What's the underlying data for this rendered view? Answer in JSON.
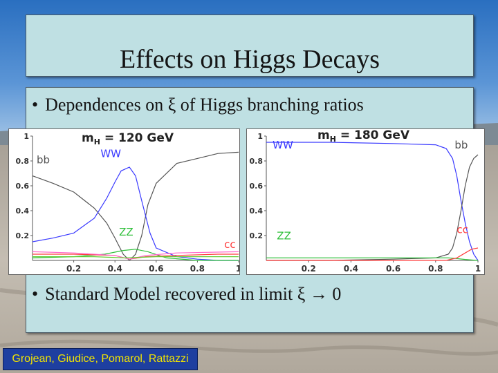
{
  "slide": {
    "title": "Effects on Higgs Decays",
    "bullets": [
      "Dependences on ξ of Higgs branching ratios",
      "Standard Model recovered in limit ξ → 0"
    ],
    "bullet_marker": "•",
    "credit": "Grojean, Giudice, Pomarol, Rattazzi"
  },
  "colors": {
    "panel_bg": "#bfe0e3",
    "credit_bg": "#1e3fa0",
    "credit_text": "#f2e400",
    "ww": "#3a3aff",
    "zz": "#2fbf3a",
    "cc": "#ff3b3b",
    "bb": "#555555"
  },
  "chart_data": [
    {
      "type": "line",
      "title": "mH = 120 GeV",
      "title_main": "m",
      "title_sub": "H",
      "title_rest": " = 120 GeV",
      "x_ticks": [
        "0.2",
        "0.4",
        "0.6",
        "0.8",
        "1"
      ],
      "y_ticks": [
        "0.2",
        "0.4",
        "0.6",
        "0.8",
        "1"
      ],
      "xlim": [
        0,
        1
      ],
      "ylim": [
        0,
        1
      ],
      "series": [
        {
          "name": "bb",
          "color": "#555555",
          "x": [
            0,
            0.1,
            0.2,
            0.3,
            0.36,
            0.4,
            0.44,
            0.47,
            0.5,
            0.53,
            0.56,
            0.6,
            0.7,
            0.8,
            0.9,
            1.0
          ],
          "y": [
            0.68,
            0.62,
            0.55,
            0.42,
            0.3,
            0.18,
            0.05,
            0.0,
            0.05,
            0.2,
            0.45,
            0.62,
            0.78,
            0.82,
            0.86,
            0.87
          ]
        },
        {
          "name": "WW",
          "color": "#3a3aff",
          "x": [
            0,
            0.1,
            0.2,
            0.3,
            0.36,
            0.4,
            0.43,
            0.47,
            0.5,
            0.53,
            0.57,
            0.6,
            0.7,
            0.8,
            0.9,
            1.0
          ],
          "y": [
            0.15,
            0.18,
            0.22,
            0.34,
            0.5,
            0.63,
            0.72,
            0.75,
            0.68,
            0.48,
            0.22,
            0.1,
            0.03,
            0.01,
            0.0,
            0.0
          ]
        },
        {
          "name": "ZZ",
          "color": "#2fbf3a",
          "x": [
            0,
            0.2,
            0.35,
            0.44,
            0.5,
            0.56,
            0.65,
            0.8,
            1.0
          ],
          "y": [
            0.02,
            0.03,
            0.05,
            0.08,
            0.09,
            0.07,
            0.02,
            0.0,
            0.0
          ]
        },
        {
          "name": "cc",
          "color": "#ff3b3b",
          "x": [
            0,
            0.2,
            0.4,
            0.47,
            0.55,
            0.7,
            0.9,
            1.0
          ],
          "y": [
            0.05,
            0.05,
            0.04,
            0.01,
            0.03,
            0.04,
            0.05,
            0.05
          ]
        },
        {
          "name": "",
          "color": "#ff66cc",
          "x": [
            0,
            0.2,
            0.4,
            0.47,
            0.55,
            0.7,
            1.0
          ],
          "y": [
            0.07,
            0.06,
            0.04,
            0.01,
            0.04,
            0.06,
            0.07
          ]
        },
        {
          "name": "",
          "color": "#66cc33",
          "x": [
            0,
            0.3,
            0.45,
            0.6,
            1.0
          ],
          "y": [
            0.03,
            0.03,
            0.02,
            0.03,
            0.03
          ]
        }
      ],
      "labels": [
        {
          "text": "bb",
          "color": "#555555",
          "x": 0.02,
          "y": 0.78
        },
        {
          "text": "WW",
          "color": "#3a3aff",
          "x": 0.33,
          "y": 0.83
        },
        {
          "text": "ZZ",
          "color": "#2fbf3a",
          "x": 0.42,
          "y": 0.2
        },
        {
          "text": "cc",
          "color": "#ff3b3b",
          "x": 0.93,
          "y": 0.1
        }
      ]
    },
    {
      "type": "line",
      "title": "mH = 180 GeV",
      "title_main": "m",
      "title_sub": "H",
      "title_rest": " = 180 GeV",
      "x_ticks": [
        "0.2",
        "0.4",
        "0.6",
        "0.8",
        "1"
      ],
      "y_ticks": [
        "0.2",
        "0.4",
        "0.6",
        "0.8",
        "1"
      ],
      "xlim": [
        0,
        1
      ],
      "ylim": [
        0,
        1
      ],
      "series": [
        {
          "name": "WW",
          "color": "#3a3aff",
          "x": [
            0,
            0.3,
            0.6,
            0.8,
            0.85,
            0.88,
            0.9,
            0.92,
            0.94,
            0.96,
            0.98,
            1.0
          ],
          "y": [
            0.95,
            0.95,
            0.94,
            0.93,
            0.9,
            0.82,
            0.68,
            0.48,
            0.3,
            0.15,
            0.05,
            0.0
          ]
        },
        {
          "name": "bb",
          "color": "#555555",
          "x": [
            0,
            0.3,
            0.6,
            0.8,
            0.86,
            0.88,
            0.9,
            0.92,
            0.94,
            0.96,
            0.98,
            1.0
          ],
          "y": [
            0.0,
            0.0,
            0.01,
            0.02,
            0.05,
            0.1,
            0.22,
            0.4,
            0.6,
            0.75,
            0.82,
            0.85
          ]
        },
        {
          "name": "ZZ",
          "color": "#2fbf3a",
          "x": [
            0,
            0.3,
            0.6,
            0.8,
            0.86,
            0.9,
            0.94,
            0.98,
            1.0
          ],
          "y": [
            0.02,
            0.02,
            0.02,
            0.02,
            0.02,
            0.015,
            0.008,
            0.002,
            0.0
          ]
        },
        {
          "name": "cc",
          "color": "#ff3b3b",
          "x": [
            0,
            0.6,
            0.85,
            0.9,
            0.94,
            0.97,
            1.0
          ],
          "y": [
            0.0,
            0.0,
            0.0,
            0.02,
            0.06,
            0.09,
            0.1
          ]
        }
      ],
      "labels": [
        {
          "text": "WW",
          "color": "#3a3aff",
          "x": 0.03,
          "y": 0.9
        },
        {
          "text": "bb",
          "color": "#555555",
          "x": 0.89,
          "y": 0.9
        },
        {
          "text": "ZZ",
          "color": "#2fbf3a",
          "x": 0.05,
          "y": 0.17
        },
        {
          "text": "cc",
          "color": "#ff3b3b",
          "x": 0.9,
          "y": 0.22
        }
      ]
    }
  ]
}
